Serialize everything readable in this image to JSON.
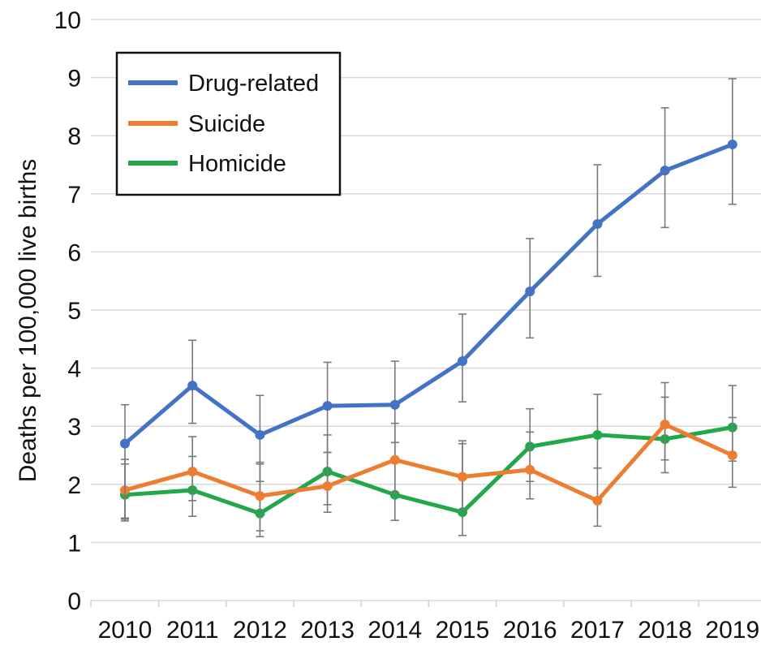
{
  "chart_data": {
    "type": "line",
    "title": "",
    "xlabel": "",
    "ylabel": "Deaths per 100,000 live births",
    "x": [
      "2010",
      "2011",
      "2012",
      "2013",
      "2014",
      "2015",
      "2016",
      "2017",
      "2018",
      "2019"
    ],
    "ylim": [
      0,
      10
    ],
    "yticks": [
      "0",
      "1",
      "2",
      "3",
      "4",
      "5",
      "6",
      "7",
      "8",
      "9",
      "10"
    ],
    "grid": true,
    "legend_position": "top-left",
    "series": [
      {
        "name": "Drug-related",
        "color": "#4472c4",
        "values": [
          2.7,
          3.7,
          2.85,
          3.35,
          3.37,
          4.12,
          5.32,
          6.48,
          7.4,
          7.85
        ],
        "error_low": [
          1.4,
          3.05,
          2.05,
          2.55,
          2.72,
          3.42,
          4.52,
          5.58,
          6.42,
          6.82
        ],
        "error_high": [
          3.37,
          4.48,
          3.53,
          4.1,
          4.12,
          4.93,
          6.23,
          7.5,
          8.48,
          8.98
        ]
      },
      {
        "name": "Suicide",
        "color": "#ed7d31",
        "values": [
          1.9,
          2.22,
          1.8,
          1.97,
          2.42,
          2.13,
          2.25,
          1.72,
          3.03,
          2.5
        ],
        "error_low": [
          1.37,
          1.72,
          1.2,
          1.52,
          1.85,
          1.55,
          1.75,
          1.28,
          2.42,
          1.95
        ],
        "error_high": [
          2.43,
          2.82,
          2.38,
          2.55,
          3.05,
          2.75,
          2.9,
          2.28,
          3.75,
          3.15
        ]
      },
      {
        "name": "Homicide",
        "color": "#22a84a",
        "values": [
          1.82,
          1.9,
          1.5,
          2.22,
          1.82,
          1.52,
          2.65,
          2.85,
          2.78,
          2.98
        ],
        "error_low": [
          1.42,
          1.45,
          1.1,
          1.65,
          1.38,
          1.12,
          2.05,
          2.28,
          2.2,
          2.4
        ],
        "error_high": [
          2.35,
          2.48,
          2.35,
          2.85,
          2.72,
          2.7,
          3.3,
          3.55,
          3.5,
          3.7
        ]
      }
    ]
  }
}
